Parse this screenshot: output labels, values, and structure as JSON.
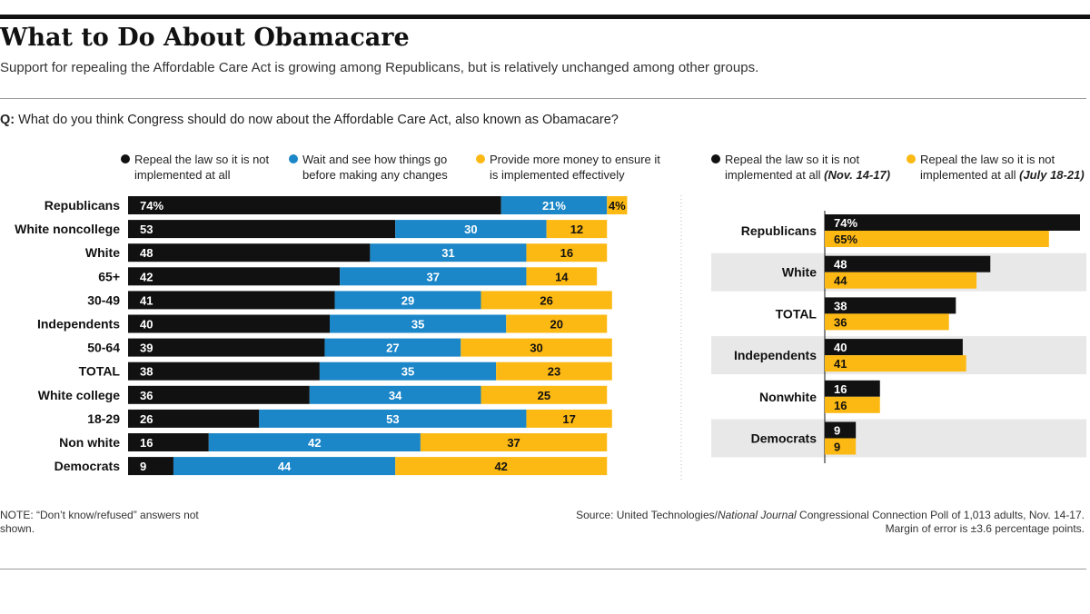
{
  "header": {
    "title": "What to Do About Obamacare",
    "subtitle": "Support for repealing the Affordable Care Act is growing among Republicans, but is relatively unchanged among other groups."
  },
  "question": {
    "prefix": "Q:",
    "text": " What do you think Congress should do now about the Affordable Care Act, also known as Obamacare?"
  },
  "colors": {
    "black": "#111111",
    "blue": "#1b86c8",
    "yellow": "#fdb913",
    "band": "#e8e8e8"
  },
  "legend_left": [
    {
      "label": "Repeal the law so it is not implemented at all",
      "color": "#111111"
    },
    {
      "label": "Wait and see how things go before making any changes",
      "color": "#1b86c8"
    },
    {
      "label": "Provide more money to ensure it is implemented effectively",
      "color": "#fdb913"
    }
  ],
  "legend_right": [
    {
      "label": "Repeal the law so it is not implemented at all",
      "period": "(Nov. 14-17)",
      "color": "#111111"
    },
    {
      "label": "Repeal the law so it is not implemented at all",
      "period": "(July 18-21)",
      "color": "#fdb913"
    }
  ],
  "chart_data": [
    {
      "type": "bar",
      "orientation": "horizontal",
      "stacked": true,
      "categories": [
        "Republicans",
        "White noncollege",
        "White",
        "65+",
        "30-49",
        "Independents",
        "50-64",
        "TOTAL",
        "White college",
        "18-29",
        "Non white",
        "Democrats"
      ],
      "series": [
        {
          "values": [
            74,
            53,
            48,
            42,
            41,
            40,
            39,
            38,
            36,
            26,
            16,
            9
          ],
          "labels": [
            "74%",
            "53",
            "48",
            "42",
            "41",
            "40",
            "39",
            "38",
            "36",
            "26",
            "16",
            "9"
          ]
        },
        {
          "values": [
            21,
            30,
            31,
            37,
            29,
            35,
            27,
            35,
            34,
            53,
            42,
            44
          ],
          "labels": [
            "21%",
            "30",
            "31",
            "37",
            "29",
            "35",
            "27",
            "35",
            "34",
            "53",
            "42",
            "44"
          ]
        },
        {
          "values": [
            4,
            12,
            16,
            14,
            26,
            20,
            30,
            23,
            25,
            17,
            37,
            42
          ],
          "labels": [
            "4%",
            "12",
            "16",
            "14",
            "26",
            "20",
            "30",
            "23",
            "25",
            "17",
            "37",
            "42"
          ]
        }
      ],
      "xlim": [
        0,
        100
      ]
    },
    {
      "type": "bar",
      "orientation": "horizontal",
      "grouped": true,
      "categories": [
        "Republicans",
        "White",
        "TOTAL",
        "Independents",
        "Nonwhite",
        "Democrats"
      ],
      "series": [
        {
          "values": [
            74,
            48,
            38,
            40,
            16,
            9
          ],
          "labels": [
            "74%",
            "48",
            "38",
            "40",
            "16",
            "9"
          ]
        },
        {
          "values": [
            65,
            44,
            36,
            41,
            16,
            9
          ],
          "labels": [
            "65%",
            "44",
            "36",
            "41",
            "16",
            "9"
          ]
        }
      ],
      "xlim": [
        0,
        74
      ]
    }
  ],
  "footer": {
    "note": "NOTE: “Don’t know/refused” answers not shown.",
    "source_prefix": "Source: United Technologies/",
    "source_italic": "National Journal",
    "source_suffix": " Congressional Connection Poll of 1,013 adults, Nov. 14-17. Margin of error is ±3.6 percentage points."
  }
}
